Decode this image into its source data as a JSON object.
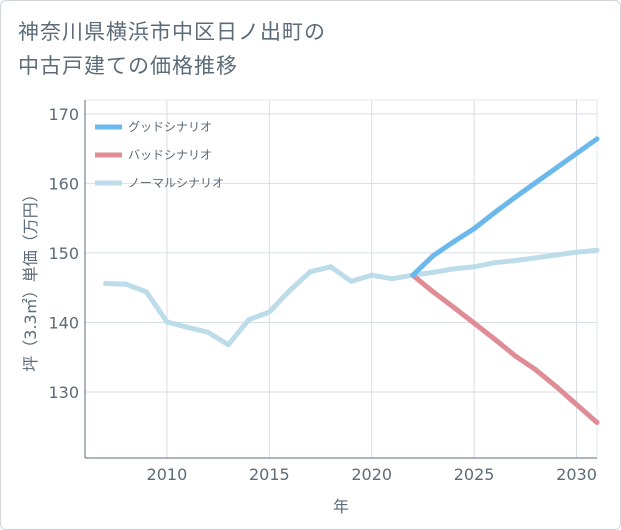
{
  "title_line1": "神奈川県横浜市中区日ノ出町の",
  "title_line2": "中古戸建ての価格推移",
  "chart_data": {
    "type": "line",
    "title": "神奈川県横浜市中区日ノ出町の中古戸建ての価格推移",
    "xlabel": "年",
    "ylabel": "坪（3.3㎡）単価（万円）",
    "xlim": [
      2006,
      2031
    ],
    "ylim": [
      120.5,
      172
    ],
    "xticks": [
      2010,
      2015,
      2020,
      2025,
      2030
    ],
    "yticks": [
      130,
      140,
      150,
      160,
      170
    ],
    "grid": true,
    "legend_position": "top-left",
    "series": [
      {
        "name": "グッドシナリオ",
        "color": "#6bb9ec",
        "x": [
          2022,
          2023,
          2024,
          2025,
          2026,
          2027,
          2028,
          2029,
          2030,
          2031
        ],
        "y": [
          146.8,
          149.6,
          151.6,
          153.5,
          155.8,
          158.0,
          160.1,
          162.2,
          164.3,
          166.4
        ]
      },
      {
        "name": "バッドシナリオ",
        "color": "#e08c97",
        "x": [
          2022,
          2023,
          2024,
          2025,
          2026,
          2027,
          2028,
          2029,
          2030,
          2031
        ],
        "y": [
          146.8,
          144.4,
          142.2,
          139.9,
          137.6,
          135.2,
          133.2,
          130.8,
          128.2,
          125.6
        ]
      },
      {
        "name": "ノーマルシナリオ",
        "color": "#bddcea",
        "x": [
          2007,
          2008,
          2009,
          2010,
          2011,
          2012,
          2013,
          2014,
          2015,
          2016,
          2017,
          2018,
          2019,
          2020,
          2021,
          2022,
          2023,
          2024,
          2025,
          2026,
          2027,
          2028,
          2029,
          2030,
          2031
        ],
        "y": [
          145.6,
          145.5,
          144.4,
          140.1,
          139.3,
          138.6,
          136.8,
          140.4,
          141.5,
          144.6,
          147.3,
          148.0,
          145.9,
          146.8,
          146.3,
          146.8,
          147.2,
          147.7,
          148.0,
          148.6,
          148.9,
          149.3,
          149.7,
          150.1,
          150.4
        ]
      }
    ]
  }
}
